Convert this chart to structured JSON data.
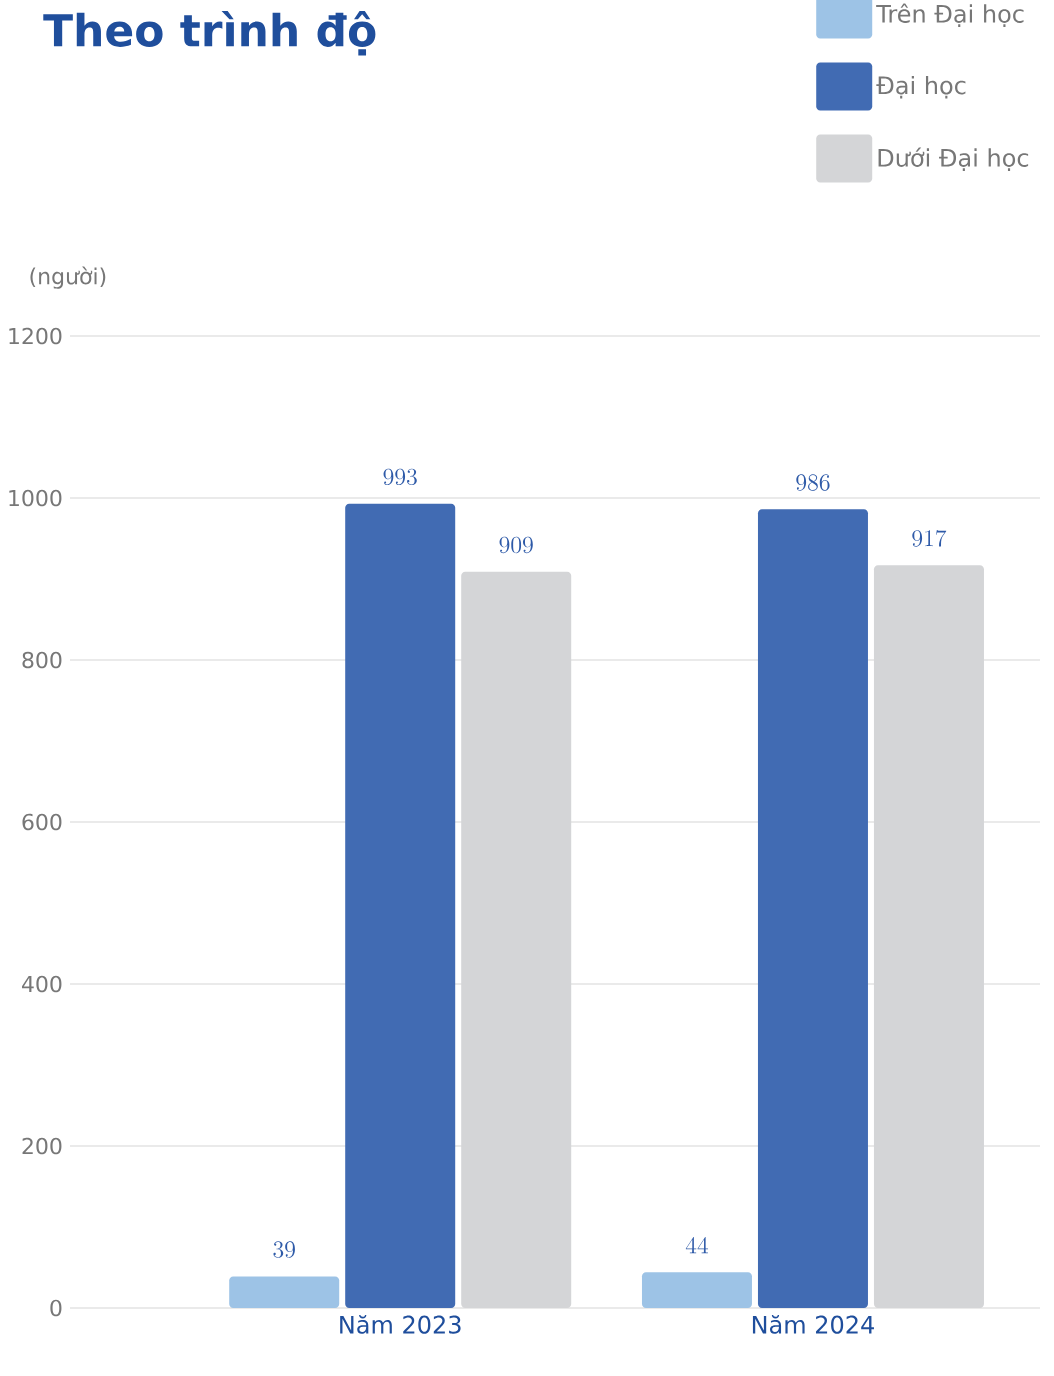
{
  "chart_data": {
    "type": "bar",
    "title": "Theo trình độ",
    "ylabel": "(người)",
    "categories": [
      "Năm 2023",
      "Năm 2024"
    ],
    "series": [
      {
        "name": "Trên Đại học",
        "color": "#9dc3e6",
        "values": [
          39,
          44
        ]
      },
      {
        "name": "Đại học",
        "color": "#416bb3",
        "values": [
          993,
          986
        ]
      },
      {
        "name": "Dưới Đại học",
        "color": "#d4d5d7",
        "values": [
          909,
          917
        ]
      }
    ],
    "ylim": [
      0,
      1200
    ],
    "yticks": [
      0,
      200,
      400,
      600,
      800,
      1000,
      1200
    ],
    "grid": "y",
    "legend": "top right",
    "data_labels": true
  }
}
